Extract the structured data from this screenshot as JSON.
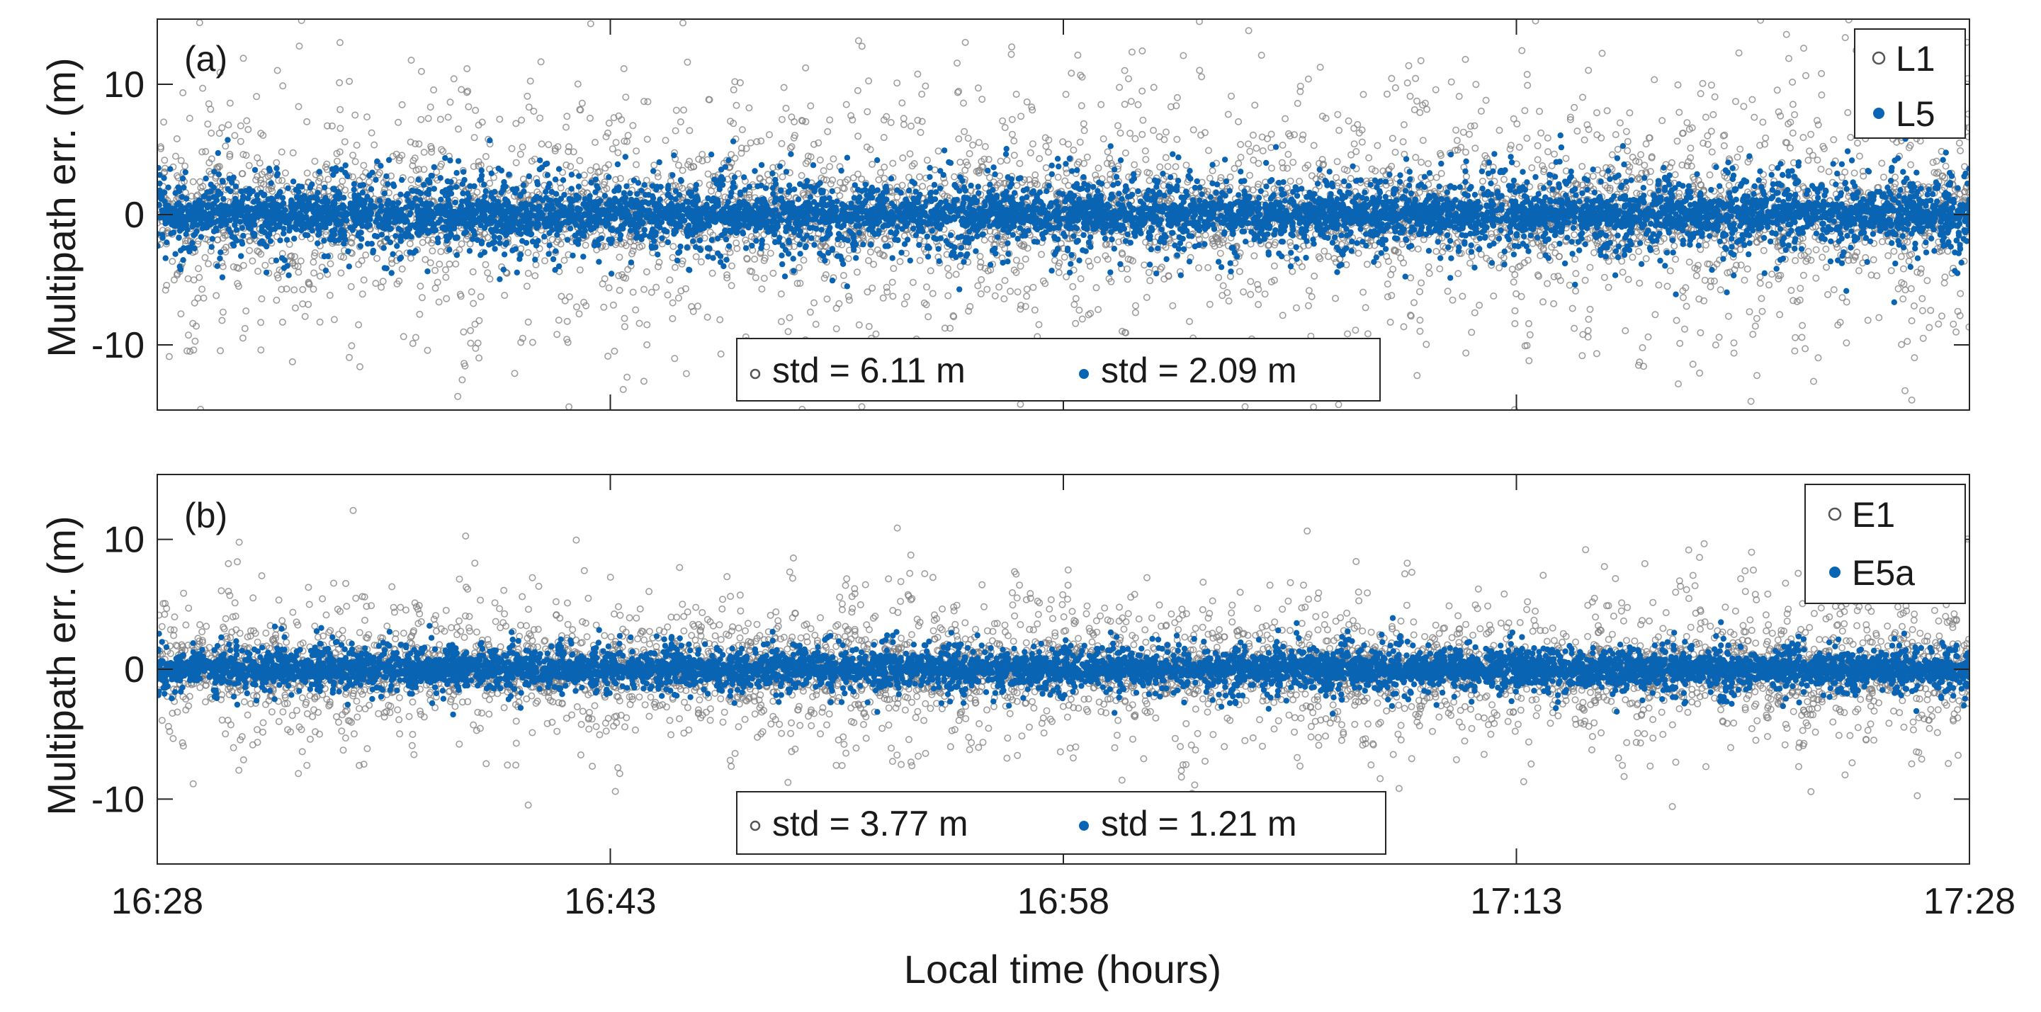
{
  "chart_data": [
    {
      "type": "scatter",
      "panel_label": "(a)",
      "xlabel": "",
      "ylabel": "Multipath err. (m)",
      "xlim": [
        0,
        60
      ],
      "ylim": [
        -15,
        15
      ],
      "yticks": [
        10,
        0,
        -10
      ],
      "ytick_labels": [
        "10",
        "0",
        "-10"
      ],
      "legend_placement": "top-right",
      "series": [
        {
          "name": "L1",
          "marker": "open-circle",
          "color": "#7f7f7f",
          "std_label": "std = 6.11 m",
          "std": 6.11,
          "spread_outer": 6.11,
          "spread_inner": 1.4
        },
        {
          "name": "L5",
          "marker": "filled-dot",
          "color": "#0a64b4",
          "std_label": "std = 2.09 m",
          "std": 2.09,
          "spread_outer": 2.09,
          "spread_inner": 0.6
        }
      ]
    },
    {
      "type": "scatter",
      "panel_label": "(b)",
      "xlabel": "Local time (hours)",
      "ylabel": "Multipath err. (m)",
      "xlim": [
        0,
        60
      ],
      "ylim": [
        -15,
        15
      ],
      "yticks": [
        10,
        0,
        -10
      ],
      "ytick_labels": [
        "10",
        "0",
        "-10"
      ],
      "xticks": [
        0,
        15,
        30,
        45,
        60
      ],
      "xtick_labels": [
        "16:28",
        "16:43",
        "16:58",
        "17:13",
        "17:28"
      ],
      "legend_placement": "top-right",
      "series": [
        {
          "name": "E1",
          "marker": "open-circle",
          "color": "#7f7f7f",
          "std_label": "std = 3.77 m",
          "std": 3.77,
          "spread_outer": 3.77,
          "spread_inner": 1.1
        },
        {
          "name": "E5a",
          "marker": "filled-dot",
          "color": "#0a64b4",
          "std_label": "std = 1.21 m",
          "std": 1.21,
          "spread_outer": 1.21,
          "spread_inner": 0.45
        }
      ]
    }
  ]
}
